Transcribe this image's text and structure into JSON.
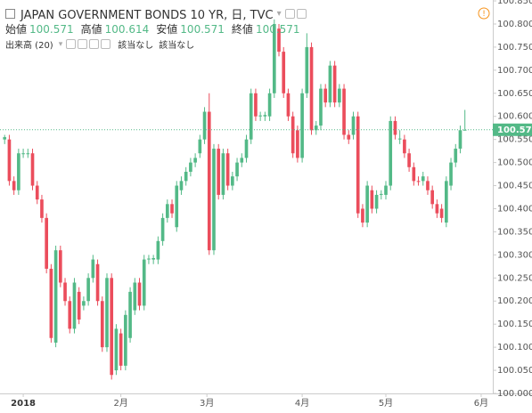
{
  "chart_data": {
    "type": "candlestick",
    "title": "JAPAN GOVERNMENT BONDS 10 YR, 日, TVC",
    "ohlc_header": [
      {
        "label": "始値",
        "value": 100.571
      },
      {
        "label": "高値",
        "value": 100.614
      },
      {
        "label": "安値",
        "value": 100.571
      },
      {
        "label": "終値",
        "value": 100.571
      }
    ],
    "volume_label": "出来高 (20)",
    "volume_values": [
      "該当なし",
      "該当なし"
    ],
    "up_color": "#53b987",
    "down_color": "#eb4d5c",
    "last_price": 100.571,
    "last_price_color": "#53b987",
    "ylim": [
      100.0,
      100.852
    ],
    "yticks": [
      {
        "value": 100.0,
        "label": "100.000"
      },
      {
        "value": 100.05,
        "label": "100.050"
      },
      {
        "value": 100.1,
        "label": "100.100"
      },
      {
        "value": 100.15,
        "label": "100.150"
      },
      {
        "value": 100.2,
        "label": "100.200"
      },
      {
        "value": 100.25,
        "label": "100.250"
      },
      {
        "value": 100.3,
        "label": "100.300"
      },
      {
        "value": 100.35,
        "label": "100.350"
      },
      {
        "value": 100.4,
        "label": "100.400"
      },
      {
        "value": 100.45,
        "label": "100.450"
      },
      {
        "value": 100.5,
        "label": "100.500"
      },
      {
        "value": 100.55,
        "label": "100.550"
      },
      {
        "value": 100.6,
        "label": "100.600"
      },
      {
        "value": 100.65,
        "label": "100.650"
      },
      {
        "value": 100.7,
        "label": "100.700"
      },
      {
        "value": 100.75,
        "label": "100.750"
      },
      {
        "value": 100.8,
        "label": "100.800"
      },
      {
        "value": 100.85,
        "label": "100.850"
      }
    ],
    "xlim": [
      -1,
      105
    ],
    "xticks": [
      {
        "value": 4,
        "label": "2018"
      },
      {
        "value": 25,
        "label": "2月"
      },
      {
        "value": 43.5,
        "label": "3月"
      },
      {
        "value": 64,
        "label": "4月"
      },
      {
        "value": 82,
        "label": "5月"
      },
      {
        "value": 102.5,
        "label": "6月"
      }
    ],
    "ohlc": [
      [
        100.55,
        100.56,
        100.54,
        100.555
      ],
      [
        100.55,
        100.56,
        100.45,
        100.46
      ],
      [
        100.46,
        100.47,
        100.43,
        100.44
      ],
      [
        100.44,
        100.53,
        100.43,
        100.52
      ],
      [
        100.52,
        100.53,
        100.51,
        100.52
      ],
      [
        100.52,
        100.53,
        100.51,
        100.52
      ],
      [
        100.52,
        100.53,
        100.44,
        100.45
      ],
      [
        100.45,
        100.46,
        100.41,
        100.42
      ],
      [
        100.42,
        100.43,
        100.37,
        100.38
      ],
      [
        100.38,
        100.39,
        100.26,
        100.27
      ],
      [
        100.27,
        100.28,
        100.11,
        100.12
      ],
      [
        100.11,
        100.32,
        100.1,
        100.31
      ],
      [
        100.31,
        100.32,
        100.23,
        100.24
      ],
      [
        100.24,
        100.25,
        100.19,
        100.2
      ],
      [
        100.2,
        100.21,
        100.13,
        100.14
      ],
      [
        100.14,
        100.25,
        100.13,
        100.24
      ],
      [
        100.22,
        100.23,
        100.15,
        100.16
      ],
      [
        100.19,
        100.21,
        100.18,
        100.2
      ],
      [
        100.2,
        100.26,
        100.19,
        100.25
      ],
      [
        100.25,
        100.3,
        100.24,
        100.29
      ],
      [
        100.28,
        100.29,
        100.19,
        100.2
      ],
      [
        100.2,
        100.21,
        100.09,
        100.1
      ],
      [
        100.1,
        100.26,
        100.09,
        100.25
      ],
      [
        100.25,
        100.26,
        100.03,
        100.04
      ],
      [
        100.05,
        100.15,
        100.04,
        100.14
      ],
      [
        100.13,
        100.14,
        100.05,
        100.06
      ],
      [
        100.06,
        100.18,
        100.05,
        100.17
      ],
      [
        100.12,
        100.23,
        100.11,
        100.22
      ],
      [
        100.18,
        100.25,
        100.17,
        100.24
      ],
      [
        100.24,
        100.25,
        100.18,
        100.19
      ],
      [
        100.19,
        100.3,
        100.18,
        100.29
      ],
      [
        100.29,
        100.3,
        100.28,
        100.292
      ],
      [
        100.29,
        100.3,
        100.28,
        100.293
      ],
      [
        100.29,
        100.34,
        100.28,
        100.33
      ],
      [
        100.33,
        100.39,
        100.32,
        100.38
      ],
      [
        100.38,
        100.42,
        100.37,
        100.41
      ],
      [
        100.41,
        100.42,
        100.38,
        100.39
      ],
      [
        100.36,
        100.46,
        100.35,
        100.45
      ],
      [
        100.44,
        100.47,
        100.43,
        100.46
      ],
      [
        100.46,
        100.49,
        100.45,
        100.48
      ],
      [
        100.48,
        100.51,
        100.47,
        100.5
      ],
      [
        100.5,
        100.52,
        100.49,
        100.51
      ],
      [
        100.52,
        100.56,
        100.51,
        100.55
      ],
      [
        100.55,
        100.62,
        100.54,
        100.61
      ],
      [
        100.61,
        100.65,
        100.3,
        100.31
      ],
      [
        100.31,
        100.54,
        100.3,
        100.53
      ],
      [
        100.53,
        100.54,
        100.42,
        100.43
      ],
      [
        100.43,
        100.53,
        100.42,
        100.52
      ],
      [
        100.52,
        100.53,
        100.44,
        100.45
      ],
      [
        100.45,
        100.48,
        100.44,
        100.47
      ],
      [
        100.47,
        100.51,
        100.46,
        100.5
      ],
      [
        100.5,
        100.52,
        100.49,
        100.51
      ],
      [
        100.51,
        100.56,
        100.5,
        100.55
      ],
      [
        100.55,
        100.66,
        100.54,
        100.65
      ],
      [
        100.65,
        100.66,
        100.59,
        100.6
      ],
      [
        100.6,
        100.61,
        100.59,
        100.602
      ],
      [
        100.6,
        100.61,
        100.59,
        100.603
      ],
      [
        100.6,
        100.66,
        100.59,
        100.65
      ],
      [
        100.65,
        100.81,
        100.64,
        100.8
      ],
      [
        100.79,
        100.8,
        100.73,
        100.74
      ],
      [
        100.74,
        100.75,
        100.64,
        100.65
      ],
      [
        100.65,
        100.66,
        100.59,
        100.6
      ],
      [
        100.6,
        100.61,
        100.51,
        100.52
      ],
      [
        100.57,
        100.58,
        100.5,
        100.51
      ],
      [
        100.51,
        100.66,
        100.5,
        100.65
      ],
      [
        100.65,
        100.78,
        100.64,
        100.75
      ],
      [
        100.75,
        100.76,
        100.56,
        100.57
      ],
      [
        100.57,
        100.59,
        100.56,
        100.58
      ],
      [
        100.58,
        100.67,
        100.57,
        100.66
      ],
      [
        100.66,
        100.67,
        100.62,
        100.63
      ],
      [
        100.63,
        100.72,
        100.62,
        100.71
      ],
      [
        100.71,
        100.72,
        100.62,
        100.63
      ],
      [
        100.63,
        100.67,
        100.62,
        100.66
      ],
      [
        100.66,
        100.67,
        100.55,
        100.56
      ],
      [
        100.56,
        100.57,
        100.54,
        100.55
      ],
      [
        100.56,
        100.61,
        100.55,
        100.6
      ],
      [
        100.6,
        100.61,
        100.38,
        100.39
      ],
      [
        100.4,
        100.41,
        100.36,
        100.37
      ],
      [
        100.37,
        100.46,
        100.36,
        100.45
      ],
      [
        100.44,
        100.45,
        100.39,
        100.4
      ],
      [
        100.4,
        100.44,
        100.39,
        100.43
      ],
      [
        100.43,
        100.44,
        100.42,
        100.432
      ],
      [
        100.43,
        100.46,
        100.42,
        100.45
      ],
      [
        100.45,
        100.6,
        100.44,
        100.59
      ],
      [
        100.59,
        100.6,
        100.55,
        100.56
      ],
      [
        100.55,
        100.57,
        100.54,
        100.552
      ],
      [
        100.55,
        100.56,
        100.51,
        100.52
      ],
      [
        100.52,
        100.53,
        100.48,
        100.49
      ],
      [
        100.49,
        100.5,
        100.45,
        100.46
      ],
      [
        100.46,
        100.47,
        100.45,
        100.458
      ],
      [
        100.46,
        100.48,
        100.45,
        100.47
      ],
      [
        100.46,
        100.47,
        100.43,
        100.44
      ],
      [
        100.44,
        100.45,
        100.4,
        100.41
      ],
      [
        100.41,
        100.42,
        100.38,
        100.39
      ],
      [
        100.4,
        100.41,
        100.37,
        100.38
      ],
      [
        100.37,
        100.47,
        100.36,
        100.46
      ],
      [
        100.45,
        100.51,
        100.44,
        100.5
      ],
      [
        100.5,
        100.54,
        100.49,
        100.53
      ],
      [
        100.53,
        100.58,
        100.52,
        100.57
      ],
      [
        100.571,
        100.614,
        100.571,
        100.571
      ]
    ]
  }
}
